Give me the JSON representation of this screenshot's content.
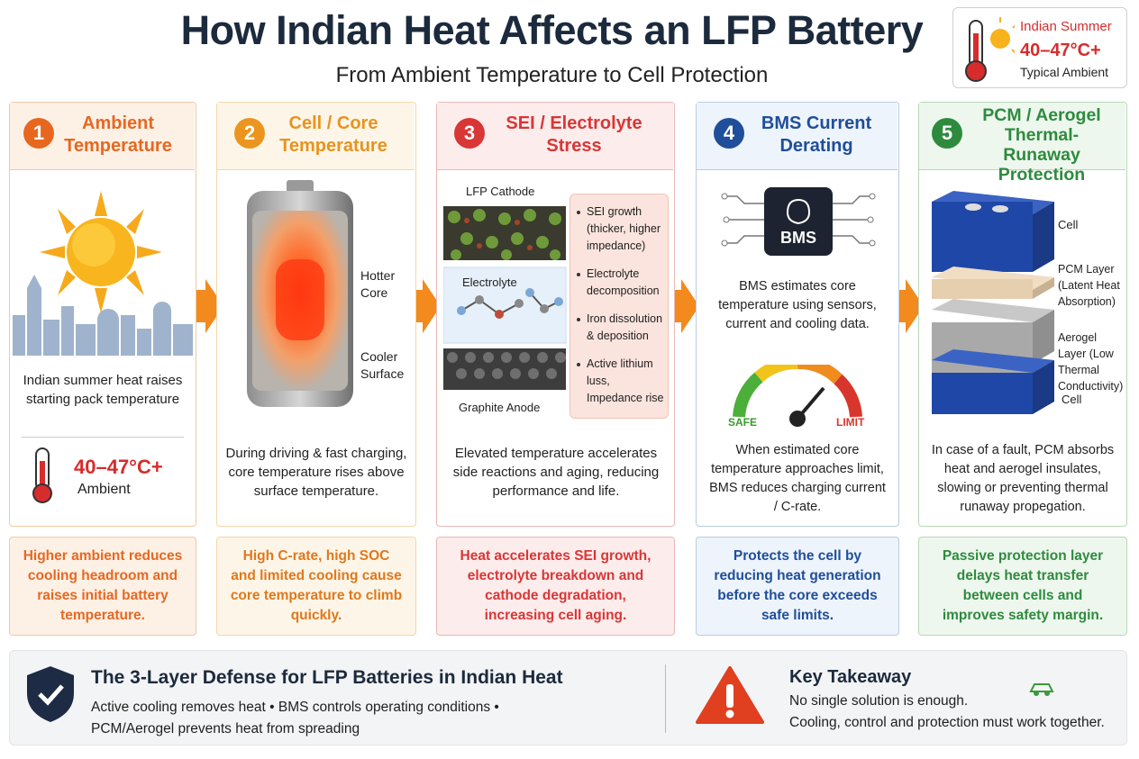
{
  "header": {
    "title": "How Indian Heat Affects an LFP Battery",
    "subtitle": "From Ambient Temperature to Cell Protection"
  },
  "badge": {
    "label": "Indian Summer",
    "temp": "40–47°C+",
    "note": "Typical Ambient"
  },
  "steps": [
    {
      "number": "1",
      "title": "Ambient Temperature",
      "description": "Indian summer heat raises starting pack temperature",
      "temp": "40–47°C+",
      "temp_label": "Ambient",
      "summary": "Higher ambient reduces cooling headroom and raises initial battery temperature."
    },
    {
      "number": "2",
      "title": "Cell / Core Temperature",
      "labels": [
        "Hotter Core",
        "Cooler Surface"
      ],
      "description": "During driving & fast charging, core temperature rises above surface temperature.",
      "summary": "High C-rate, high SOC and limited cooling cause core temperature to climb quickly."
    },
    {
      "number": "3",
      "title": "SEI / Electrolyte Stress",
      "labels": [
        "LFP Cathode",
        "Electrolyte",
        "Graphite Anode"
      ],
      "bullets": [
        "SEI growth (thicker, higher impedance)",
        "Electrolyte decomposition",
        "Iron dissolution & deposition",
        "Active lithium luss, Impedance rise"
      ],
      "description": "Elevated temperature accelerates side reactions and aging, reducing performance and life.",
      "summary": "Heat accelerates SEI growth, electrolyte breakdown and cathode degradation, increasing cell aging."
    },
    {
      "number": "4",
      "title": "BMS Current Derating",
      "chip": "BMS",
      "description": "BMS estimates core temperature using sensors, current and cooling data.",
      "gauge": [
        "SAFE",
        "LIMIT"
      ],
      "detail": "When estimated core temperature approaches limit, BMS reduces charging current / C-rate.",
      "summary": "Protects the cell by reducing heat generation before the core exceeds safe limits."
    },
    {
      "number": "5",
      "title": "PCM / Aerogel Thermal-Runaway Protection",
      "labels": [
        "Cell",
        "PCM Layer (Latent Heat Absorption)",
        "Aerogel Layer (Low Thermal Conductivity)",
        "Cell"
      ],
      "description": "In case of a fault, PCM absorbs heat and aerogel insulates, slowing or preventing thermal runaway propegation.",
      "summary": "Passive protection layer delays heat transfer between cells and improves safety margin."
    }
  ],
  "footer": {
    "defense_title": "The 3-Layer Defense for LFP Batteries in Indian Heat",
    "defense_text": "Active cooling removes heat • BMS controls operating conditions • PCM/Aerogel prevents heat from spreading",
    "takeaway_title": "Key Takeaway",
    "takeaway_lines": [
      "No single solution is enough.",
      "Cooling, control and protection must work together."
    ]
  }
}
